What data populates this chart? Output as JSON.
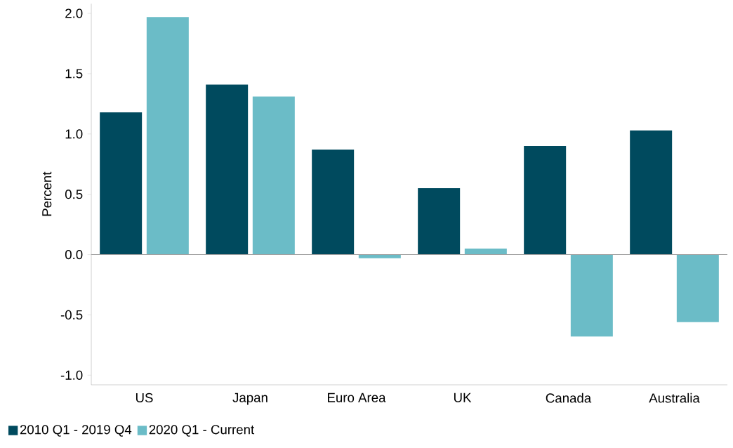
{
  "chart_data": {
    "type": "bar",
    "ylabel": "Percent",
    "categories": [
      "US",
      "Japan",
      "Euro Area",
      "UK",
      "Canada",
      "Australia"
    ],
    "series": [
      {
        "name": "2010 Q1 - 2019 Q4",
        "color": "#004a5e",
        "values": [
          1.18,
          1.41,
          0.87,
          0.55,
          0.9,
          1.03
        ]
      },
      {
        "name": "2020 Q1 - Current",
        "color": "#6bbcc7",
        "values": [
          1.97,
          1.31,
          -0.03,
          0.05,
          -0.68,
          -0.56
        ]
      }
    ],
    "ylim": [
      -1.08,
      2.08
    ],
    "yticks": [
      {
        "value": -1.0,
        "label": "-1.0"
      },
      {
        "value": -0.5,
        "label": "-0.5"
      },
      {
        "value": 0.0,
        "label": "0.0"
      },
      {
        "value": 0.5,
        "label": "0.5"
      },
      {
        "value": 1.0,
        "label": "1.0"
      },
      {
        "value": 1.5,
        "label": "1.5"
      },
      {
        "value": 2.0,
        "label": "2.0"
      }
    ],
    "ref_lines": [
      {
        "axis": "y",
        "value": 0,
        "color": "#a0a0a0"
      }
    ],
    "grid": false,
    "legend": "bottom left"
  }
}
